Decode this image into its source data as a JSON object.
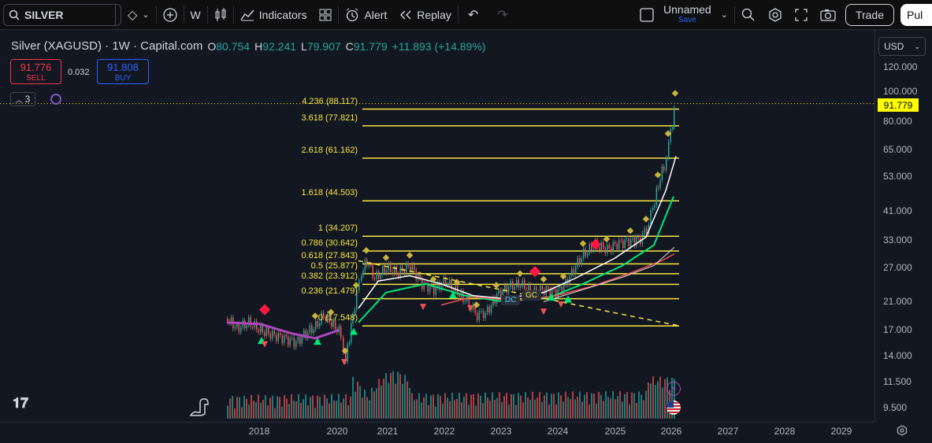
{
  "toolbar": {
    "symbol": "SILVER",
    "interval": "W",
    "indicators_label": "Indicators",
    "alert_label": "Alert",
    "replay_label": "Replay",
    "layout_name": "Unnamed",
    "save_label": "Save",
    "trade_label": "Trade",
    "publish_label": "Pul"
  },
  "legend": {
    "title": "Silver (XAGUSD) · 1W · Capital.com",
    "open_k": "O",
    "open_v": "80.754",
    "high_k": "H",
    "high_v": "92.241",
    "low_k": "L",
    "low_v": "79.907",
    "close_k": "C",
    "close_v": "91.779",
    "change": "+11.893 (+14.89%)"
  },
  "trade_panel": {
    "sell_price": "91.776",
    "sell_label": "SELL",
    "spread": "0.032",
    "buy_price": "91.808",
    "buy_label": "BUY"
  },
  "indicators_count": "3",
  "currency": "USD",
  "last_price": "91.779",
  "price_axis": [
    "120.000",
    "100.000",
    "80.000",
    "65.000",
    "53.000",
    "41.000",
    "33.000",
    "27.000",
    "21.000",
    "17.000",
    "14.000",
    "11.500",
    "9.500"
  ],
  "time_axis": [
    "2018",
    "2020",
    "2021",
    "2022",
    "2023",
    "2024",
    "2025",
    "2026",
    "2027",
    "2028",
    "2029"
  ],
  "fib_levels": [
    {
      "label": "4.236 (88.117)",
      "price": 88.117
    },
    {
      "label": "3.618 (77.821)",
      "price": 77.821
    },
    {
      "label": "2.618 (61.162)",
      "price": 61.162
    },
    {
      "label": "1.618 (44.503)",
      "price": 44.503
    },
    {
      "label": "1 (34.207)",
      "price": 34.207
    },
    {
      "label": "0.786 (30.642)",
      "price": 30.642
    },
    {
      "label": "0.618 (27.843)",
      "price": 27.843
    },
    {
      "label": "0.5 (25.877)",
      "price": 25.877
    },
    {
      "label": "0.382 (23.912)",
      "price": 23.912
    },
    {
      "label": "0.236 (21.479)",
      "price": 21.479
    },
    {
      "label": "0 (17.548)",
      "price": 17.548
    }
  ],
  "annotations": {
    "dc": "DC",
    "gc": "GC"
  },
  "colors": {
    "fib": "#f5e642",
    "up": "#26a69a",
    "down": "#ef5350",
    "last_price_bg": "#ffff00",
    "accent": "#2962ff"
  }
}
